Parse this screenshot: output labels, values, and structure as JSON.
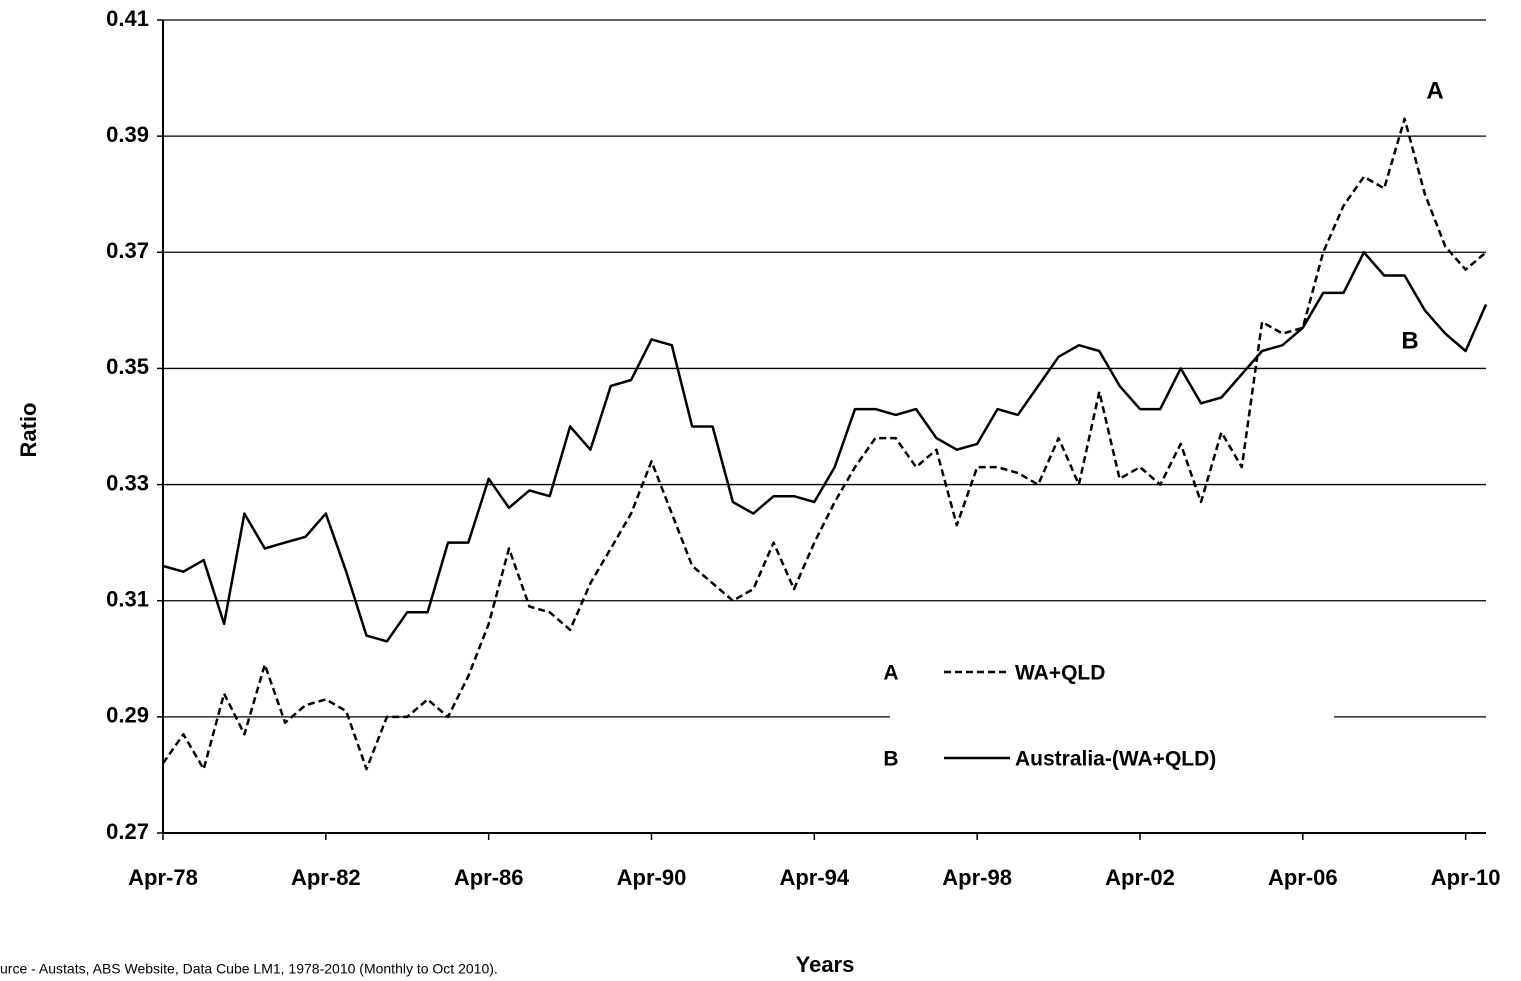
{
  "chart_data": {
    "type": "line",
    "y_label": "Ratio",
    "x_label": "Years",
    "source": "urce - Austats, ABS Website, Data Cube LM1, 1978-2010  (Monthly to Oct 2010).",
    "categories": [
      "Apr-78",
      null,
      null,
      null,
      null,
      null,
      null,
      null,
      "Apr-82",
      null,
      null,
      null,
      null,
      null,
      null,
      null,
      "Apr-86",
      null,
      null,
      null,
      null,
      null,
      null,
      null,
      "Apr-90",
      null,
      null,
      null,
      null,
      null,
      null,
      null,
      "Apr-94",
      null,
      null,
      null,
      null,
      null,
      null,
      null,
      "Apr-98",
      null,
      null,
      null,
      null,
      null,
      null,
      null,
      "Apr-02",
      null,
      null,
      null,
      null,
      null,
      null,
      null,
      "Apr-06",
      null,
      null,
      null,
      null,
      null,
      null,
      null,
      "Apr-10",
      null
    ],
    "ylim": [
      0.27,
      0.41
    ],
    "yticks": [
      0.27,
      0.29,
      0.31,
      0.33,
      0.35,
      0.37,
      0.39,
      0.41
    ],
    "grid": true,
    "legend": "lower-center",
    "series": [
      {
        "name": "WA+QLD",
        "key": "A",
        "color": "#000000",
        "dash": true,
        "values": [
          0.282,
          0.287,
          0.281,
          0.294,
          0.287,
          0.299,
          0.289,
          0.292,
          0.293,
          0.291,
          0.281,
          0.29,
          0.29,
          0.293,
          0.29,
          0.297,
          0.306,
          0.319,
          0.309,
          0.308,
          0.305,
          0.313,
          0.319,
          0.325,
          0.334,
          0.325,
          0.316,
          0.313,
          0.31,
          0.312,
          0.32,
          0.312,
          0.32,
          0.327,
          0.333,
          0.338,
          0.338,
          0.333,
          0.336,
          0.323,
          0.333,
          0.333,
          0.332,
          0.33,
          0.338,
          0.33,
          0.346,
          0.331,
          0.333,
          0.33,
          0.337,
          0.327,
          0.339,
          0.333,
          0.358,
          0.356,
          0.357,
          0.37,
          0.378,
          0.383,
          0.381,
          0.393,
          0.38,
          0.371,
          0.367,
          0.37
        ]
      },
      {
        "name": "Australia-(WA+QLD)",
        "key": "B",
        "color": "#000000",
        "dash": false,
        "values": [
          0.316,
          0.315,
          0.317,
          0.306,
          0.325,
          0.319,
          0.32,
          0.321,
          0.325,
          0.315,
          0.304,
          0.303,
          0.308,
          0.308,
          0.32,
          0.32,
          0.331,
          0.326,
          0.329,
          0.328,
          0.34,
          0.336,
          0.347,
          0.348,
          0.355,
          0.354,
          0.34,
          0.34,
          0.327,
          0.325,
          0.328,
          0.328,
          0.327,
          0.333,
          0.343,
          0.343,
          0.342,
          0.343,
          0.338,
          0.336,
          0.337,
          0.343,
          0.342,
          0.347,
          0.352,
          0.354,
          0.353,
          0.347,
          0.343,
          0.343,
          0.35,
          0.344,
          0.345,
          0.349,
          0.353,
          0.354,
          0.357,
          0.363,
          0.363,
          0.37,
          0.366,
          0.366,
          0.36,
          0.356,
          0.353,
          0.361
        ]
      }
    ]
  }
}
